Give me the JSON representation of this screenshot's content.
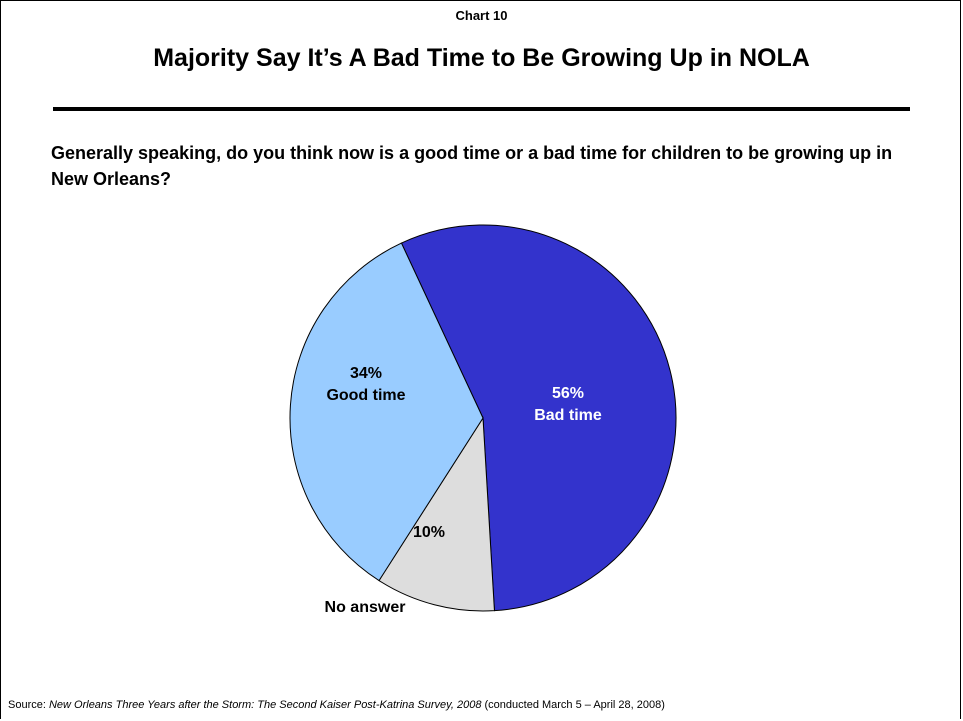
{
  "header": {
    "chart_label": "Chart 10",
    "title": "Majority Say It’s A Bad Time to Be Growing Up in NOLA"
  },
  "question": "Generally speaking, do you think now is a good time or a bad time for children to be growing up in New Orleans?",
  "source": {
    "prefix": "Source: ",
    "title": "New Orleans Three Years after the Storm: The Second Kaiser Post-Katrina Survey, 2008",
    "suffix": "  (conducted March 5 – April 28, 2008)"
  },
  "chart_data": {
    "type": "pie",
    "title": "",
    "slices": [
      {
        "name": "Bad time",
        "value": 56,
        "value_label": "56%",
        "color": "#3333CC",
        "label_color": "#FFFFFF"
      },
      {
        "name": "No answer",
        "value": 10,
        "value_label": "10%",
        "color": "#DDDDDD",
        "label_color": "#000000"
      },
      {
        "name": "Good time",
        "value": 34,
        "value_label": "34%",
        "color": "#99CCFF",
        "label_color": "#000000"
      }
    ]
  }
}
